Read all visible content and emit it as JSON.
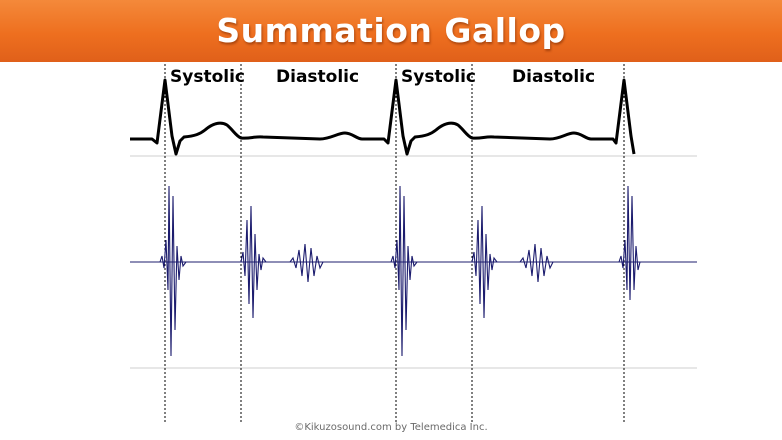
{
  "title": "Summation Gallop",
  "phase_labels": {
    "systolic_1": "Systolic",
    "diastolic_1": "Diastolic",
    "systolic_2": "Systolic",
    "diastolic_2": "Diastolic"
  },
  "credit": "©Kikuzosound.com by Telemedica Inc.",
  "colors": {
    "title_bar": "#ee6f1f",
    "waveform": "#1c1c6e",
    "ecg": "#000000",
    "guide_lines": "#c8c8c8"
  }
}
